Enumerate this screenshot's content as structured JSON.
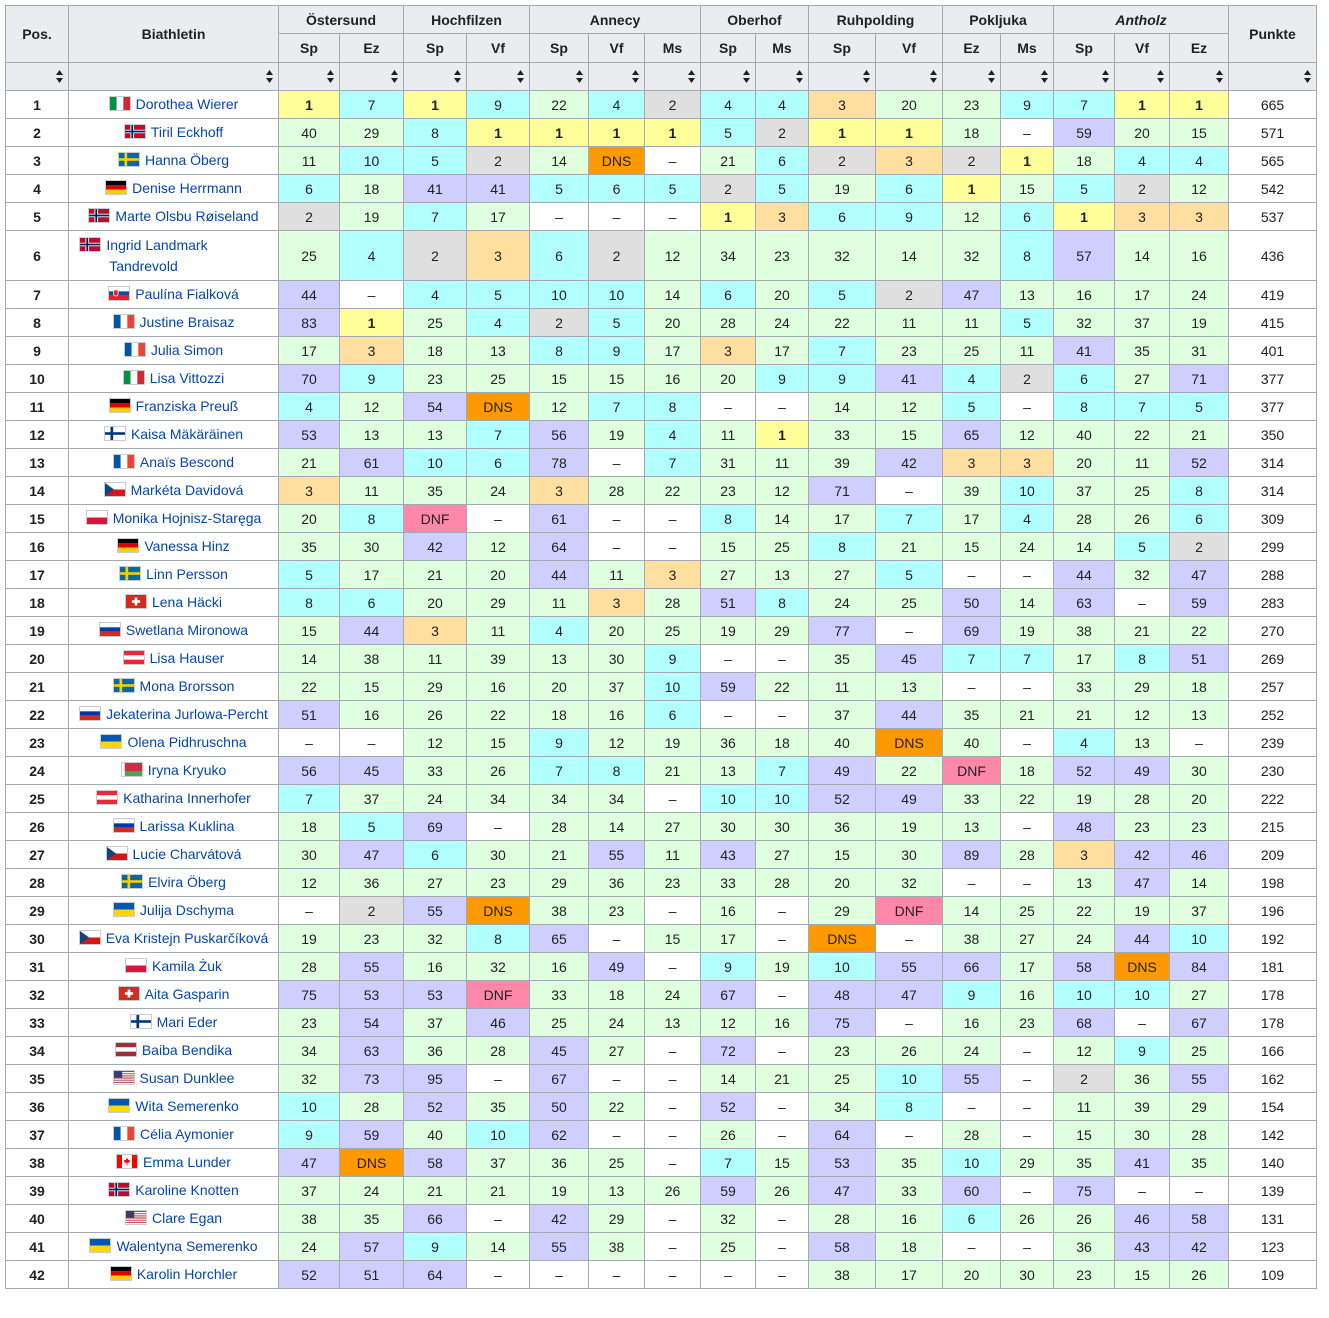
{
  "headers": {
    "pos": "Pos.",
    "athlete": "Biathletin",
    "points": "Punkte",
    "venues": [
      {
        "name": "Östersund",
        "events": [
          "Sp",
          "Ez"
        ],
        "italic": false
      },
      {
        "name": "Hochfilzen",
        "events": [
          "Sp",
          "Vf"
        ],
        "italic": false
      },
      {
        "name": "Annecy",
        "events": [
          "Sp",
          "Vf",
          "Ms"
        ],
        "italic": false
      },
      {
        "name": "Oberhof",
        "events": [
          "Sp",
          "Ms"
        ],
        "italic": false
      },
      {
        "name": "Ruhpolding",
        "events": [
          "Sp",
          "Vf"
        ],
        "italic": false
      },
      {
        "name": "Pokljuka",
        "events": [
          "Ez",
          "Ms"
        ],
        "italic": false
      },
      {
        "name": "Antholz",
        "events": [
          "Sp",
          "Vf",
          "Ez"
        ],
        "italic": true
      }
    ]
  },
  "colors": {
    "first": "#ffff99",
    "second": "#dfdfdf",
    "third": "#ffdf9f",
    "top10": "#b2ffff",
    "points": "#dfffdf",
    "noPoints": "#cfcfff",
    "dns": "#ff9900",
    "dnf": "#ff88aa",
    "none": "#ffffff"
  },
  "flags": {
    "ITA": [
      "#009246",
      "#ffffff",
      "#ce2b37"
    ],
    "NOR": [
      "#ba0c2f"
    ],
    "SWE": [
      "#006aa7"
    ],
    "GER": [
      "#000000",
      "#dd0000",
      "#ffce00"
    ],
    "SVK": [
      "#ffffff",
      "#0b4ea2",
      "#ee1c25"
    ],
    "FRA": [
      "#0055a4",
      "#ffffff",
      "#ef4135"
    ],
    "FIN": [
      "#ffffff"
    ],
    "CZE": [
      "#ffffff",
      "#d7141a"
    ],
    "POL": [
      "#ffffff",
      "#dc143c"
    ],
    "SUI": [
      "#d52b1e"
    ],
    "RUS": [
      "#ffffff",
      "#0039a6",
      "#d52b1e"
    ],
    "AUT": [
      "#ed2939",
      "#ffffff",
      "#ed2939"
    ],
    "UKR": [
      "#0057b7",
      "#ffd700"
    ],
    "BLR": [
      "#c8313e",
      "#4aa657"
    ],
    "LAT": [
      "#9e3039",
      "#ffffff",
      "#9e3039"
    ],
    "USA": [
      "#b22234"
    ],
    "CAN": [
      "#ff0000"
    ]
  },
  "rows": [
    {
      "pos": "1",
      "flag": "ITA",
      "name": "Dorothea Wierer",
      "results": [
        "1",
        "7",
        "1",
        "9",
        "22",
        "4",
        "2",
        "4",
        "4",
        "3",
        "20",
        "23",
        "9",
        "7",
        "1",
        "1"
      ],
      "points": "665"
    },
    {
      "pos": "2",
      "flag": "NOR",
      "name": "Tiril Eckhoff",
      "results": [
        "40",
        "29",
        "8",
        "1",
        "1",
        "1",
        "1",
        "5",
        "2",
        "1",
        "1",
        "18",
        "–",
        "59",
        "20",
        "15"
      ],
      "points": "571"
    },
    {
      "pos": "3",
      "flag": "SWE",
      "name": "Hanna Öberg",
      "results": [
        "11",
        "10",
        "5",
        "2",
        "14",
        "DNS",
        "–",
        "21",
        "6",
        "2",
        "3",
        "2",
        "1",
        "18",
        "4",
        "4"
      ],
      "points": "565"
    },
    {
      "pos": "4",
      "flag": "GER",
      "name": "Denise Herrmann",
      "results": [
        "6",
        "18",
        "41",
        "41",
        "5",
        "6",
        "5",
        "2",
        "5",
        "19",
        "6",
        "1",
        "15",
        "5",
        "2",
        "12"
      ],
      "points": "542"
    },
    {
      "pos": "5",
      "flag": "NOR",
      "name": "Marte Olsbu Røiseland",
      "results": [
        "2",
        "19",
        "7",
        "17",
        "–",
        "–",
        "–",
        "1",
        "3",
        "6",
        "9",
        "12",
        "6",
        "1",
        "3",
        "3"
      ],
      "points": "537"
    },
    {
      "pos": "6",
      "flag": "NOR",
      "name": "Ingrid Landmark Tandrevold",
      "results": [
        "25",
        "4",
        "2",
        "3",
        "6",
        "2",
        "12",
        "34",
        "23",
        "32",
        "14",
        "32",
        "8",
        "57",
        "14",
        "16"
      ],
      "points": "436"
    },
    {
      "pos": "7",
      "flag": "SVK",
      "name": "Paulína Fialková",
      "results": [
        "44",
        "–",
        "4",
        "5",
        "10",
        "10",
        "14",
        "6",
        "20",
        "5",
        "2",
        "47",
        "13",
        "16",
        "17",
        "24"
      ],
      "points": "419"
    },
    {
      "pos": "8",
      "flag": "FRA",
      "name": "Justine Braisaz",
      "results": [
        "83",
        "1",
        "25",
        "4",
        "2",
        "5",
        "20",
        "28",
        "24",
        "22",
        "11",
        "11",
        "5",
        "32",
        "37",
        "19"
      ],
      "points": "415"
    },
    {
      "pos": "9",
      "flag": "FRA",
      "name": "Julia Simon",
      "results": [
        "17",
        "3",
        "18",
        "13",
        "8",
        "9",
        "17",
        "3",
        "17",
        "7",
        "23",
        "25",
        "11",
        "41",
        "35",
        "31"
      ],
      "points": "401"
    },
    {
      "pos": "10",
      "flag": "ITA",
      "name": "Lisa Vittozzi",
      "results": [
        "70",
        "9",
        "23",
        "25",
        "15",
        "15",
        "16",
        "20",
        "9",
        "9",
        "41",
        "4",
        "2",
        "6",
        "27",
        "71"
      ],
      "points": "377"
    },
    {
      "pos": "11",
      "flag": "GER",
      "name": "Franziska Preuß",
      "results": [
        "4",
        "12",
        "54",
        "DNS",
        "12",
        "7",
        "8",
        "–",
        "–",
        "14",
        "12",
        "5",
        "–",
        "8",
        "7",
        "5"
      ],
      "points": "377"
    },
    {
      "pos": "12",
      "flag": "FIN",
      "name": "Kaisa Mäkäräinen",
      "results": [
        "53",
        "13",
        "13",
        "7",
        "56",
        "19",
        "4",
        "11",
        "1",
        "33",
        "15",
        "65",
        "12",
        "40",
        "22",
        "21"
      ],
      "points": "350"
    },
    {
      "pos": "13",
      "flag": "FRA",
      "name": "Anaïs Bescond",
      "results": [
        "21",
        "61",
        "10",
        "6",
        "78",
        "–",
        "7",
        "31",
        "11",
        "39",
        "42",
        "3",
        "3",
        "20",
        "11",
        "52"
      ],
      "points": "314"
    },
    {
      "pos": "14",
      "flag": "CZE",
      "name": "Markéta Davidová",
      "results": [
        "3",
        "11",
        "35",
        "24",
        "3",
        "28",
        "22",
        "23",
        "12",
        "71",
        "–",
        "39",
        "10",
        "37",
        "25",
        "8"
      ],
      "points": "314"
    },
    {
      "pos": "15",
      "flag": "POL",
      "name": "Monika Hojnisz-Staręga",
      "results": [
        "20",
        "8",
        "DNF",
        "–",
        "61",
        "–",
        "–",
        "8",
        "14",
        "17",
        "7",
        "17",
        "4",
        "28",
        "26",
        "6"
      ],
      "points": "309"
    },
    {
      "pos": "16",
      "flag": "GER",
      "name": "Vanessa Hinz",
      "results": [
        "35",
        "30",
        "42",
        "12",
        "64",
        "–",
        "–",
        "15",
        "25",
        "8",
        "21",
        "15",
        "24",
        "14",
        "5",
        "2"
      ],
      "points": "299"
    },
    {
      "pos": "17",
      "flag": "SWE",
      "name": "Linn Persson",
      "results": [
        "5",
        "17",
        "21",
        "20",
        "44",
        "11",
        "3",
        "27",
        "13",
        "27",
        "5",
        "–",
        "–",
        "44",
        "32",
        "47"
      ],
      "points": "288"
    },
    {
      "pos": "18",
      "flag": "SUI",
      "name": "Lena Häcki",
      "results": [
        "8",
        "6",
        "20",
        "29",
        "11",
        "3",
        "28",
        "51",
        "8",
        "24",
        "25",
        "50",
        "14",
        "63",
        "–",
        "59"
      ],
      "points": "283"
    },
    {
      "pos": "19",
      "flag": "RUS",
      "name": "Swetlana Mironowa",
      "results": [
        "15",
        "44",
        "3",
        "11",
        "4",
        "20",
        "25",
        "19",
        "29",
        "77",
        "–",
        "69",
        "19",
        "38",
        "21",
        "22"
      ],
      "points": "270"
    },
    {
      "pos": "20",
      "flag": "AUT",
      "name": "Lisa Hauser",
      "results": [
        "14",
        "38",
        "11",
        "39",
        "13",
        "30",
        "9",
        "–",
        "–",
        "35",
        "45",
        "7",
        "7",
        "17",
        "8",
        "51"
      ],
      "points": "269"
    },
    {
      "pos": "21",
      "flag": "SWE",
      "name": "Mona Brorsson",
      "results": [
        "22",
        "15",
        "29",
        "16",
        "20",
        "37",
        "10",
        "59",
        "22",
        "11",
        "13",
        "–",
        "–",
        "33",
        "29",
        "18"
      ],
      "points": "257"
    },
    {
      "pos": "22",
      "flag": "RUS",
      "name": "Jekaterina Jurlowa-Percht",
      "results": [
        "51",
        "16",
        "26",
        "22",
        "18",
        "16",
        "6",
        "–",
        "–",
        "37",
        "44",
        "35",
        "21",
        "21",
        "12",
        "13"
      ],
      "points": "252"
    },
    {
      "pos": "23",
      "flag": "UKR",
      "name": "Olena Pidhruschna",
      "results": [
        "–",
        "–",
        "12",
        "15",
        "9",
        "12",
        "19",
        "36",
        "18",
        "40",
        "DNS",
        "40",
        "–",
        "4",
        "13",
        "–"
      ],
      "points": "239"
    },
    {
      "pos": "24",
      "flag": "BLR",
      "name": "Iryna Kryuko",
      "results": [
        "56",
        "45",
        "33",
        "26",
        "7",
        "8",
        "21",
        "13",
        "7",
        "49",
        "22",
        "DNF",
        "18",
        "52",
        "49",
        "30"
      ],
      "points": "230"
    },
    {
      "pos": "25",
      "flag": "AUT",
      "name": "Katharina Innerhofer",
      "results": [
        "7",
        "37",
        "24",
        "34",
        "34",
        "34",
        "–",
        "10",
        "10",
        "52",
        "49",
        "33",
        "22",
        "19",
        "28",
        "20"
      ],
      "points": "222"
    },
    {
      "pos": "26",
      "flag": "RUS",
      "name": "Larissa Kuklina",
      "results": [
        "18",
        "5",
        "69",
        "–",
        "28",
        "14",
        "27",
        "30",
        "30",
        "36",
        "19",
        "13",
        "–",
        "48",
        "23",
        "23"
      ],
      "points": "215"
    },
    {
      "pos": "27",
      "flag": "CZE",
      "name": "Lucie Charvátová",
      "results": [
        "30",
        "47",
        "6",
        "30",
        "21",
        "55",
        "11",
        "43",
        "27",
        "15",
        "30",
        "89",
        "28",
        "3",
        "42",
        "46"
      ],
      "points": "209"
    },
    {
      "pos": "28",
      "flag": "SWE",
      "name": "Elvira Öberg",
      "results": [
        "12",
        "36",
        "27",
        "23",
        "29",
        "36",
        "23",
        "33",
        "28",
        "20",
        "32",
        "–",
        "–",
        "13",
        "47",
        "14"
      ],
      "points": "198"
    },
    {
      "pos": "29",
      "flag": "UKR",
      "name": "Julija Dschyma",
      "results": [
        "–",
        "2",
        "55",
        "DNS",
        "38",
        "23",
        "–",
        "16",
        "–",
        "29",
        "DNF",
        "14",
        "25",
        "22",
        "19",
        "37"
      ],
      "points": "196"
    },
    {
      "pos": "30",
      "flag": "CZE",
      "name": "Eva Kristejn Puskarčíková",
      "results": [
        "19",
        "23",
        "32",
        "8",
        "65",
        "–",
        "15",
        "17",
        "–",
        "DNS",
        "–",
        "38",
        "27",
        "24",
        "44",
        "10"
      ],
      "points": "192"
    },
    {
      "pos": "31",
      "flag": "POL",
      "name": "Kamila Żuk",
      "results": [
        "28",
        "55",
        "16",
        "32",
        "16",
        "49",
        "–",
        "9",
        "19",
        "10",
        "55",
        "66",
        "17",
        "58",
        "DNS",
        "84"
      ],
      "points": "181"
    },
    {
      "pos": "32",
      "flag": "SUI",
      "name": "Aita Gasparin",
      "results": [
        "75",
        "53",
        "53",
        "DNF",
        "33",
        "18",
        "24",
        "67",
        "–",
        "48",
        "47",
        "9",
        "16",
        "10",
        "10",
        "27"
      ],
      "points": "178"
    },
    {
      "pos": "33",
      "flag": "FIN",
      "name": "Mari Eder",
      "results": [
        "23",
        "54",
        "37",
        "46",
        "25",
        "24",
        "13",
        "12",
        "16",
        "75",
        "–",
        "16",
        "23",
        "68",
        "–",
        "67"
      ],
      "points": "178"
    },
    {
      "pos": "34",
      "flag": "LAT",
      "name": "Baiba Bendika",
      "results": [
        "34",
        "63",
        "36",
        "28",
        "45",
        "27",
        "–",
        "72",
        "–",
        "23",
        "26",
        "24",
        "–",
        "12",
        "9",
        "25"
      ],
      "points": "166"
    },
    {
      "pos": "35",
      "flag": "USA",
      "name": "Susan Dunklee",
      "results": [
        "32",
        "73",
        "95",
        "–",
        "67",
        "–",
        "–",
        "14",
        "21",
        "25",
        "10",
        "55",
        "–",
        "2",
        "36",
        "55"
      ],
      "points": "162"
    },
    {
      "pos": "36",
      "flag": "UKR",
      "name": "Wita Semerenko",
      "results": [
        "10",
        "28",
        "52",
        "35",
        "50",
        "22",
        "–",
        "52",
        "–",
        "34",
        "8",
        "–",
        "–",
        "11",
        "39",
        "29"
      ],
      "points": "154"
    },
    {
      "pos": "37",
      "flag": "FRA",
      "name": "Célia Aymonier",
      "results": [
        "9",
        "59",
        "40",
        "10",
        "62",
        "–",
        "–",
        "26",
        "–",
        "64",
        "–",
        "28",
        "–",
        "15",
        "30",
        "28"
      ],
      "points": "142"
    },
    {
      "pos": "38",
      "flag": "CAN",
      "name": "Emma Lunder",
      "results": [
        "47",
        "DNS",
        "58",
        "37",
        "36",
        "25",
        "–",
        "7",
        "15",
        "53",
        "35",
        "10",
        "29",
        "35",
        "41",
        "35"
      ],
      "points": "140"
    },
    {
      "pos": "39",
      "flag": "NOR",
      "name": "Karoline Knotten",
      "results": [
        "37",
        "24",
        "21",
        "21",
        "19",
        "13",
        "26",
        "59",
        "26",
        "47",
        "33",
        "60",
        "–",
        "75",
        "–",
        "–"
      ],
      "points": "139"
    },
    {
      "pos": "40",
      "flag": "USA",
      "name": "Clare Egan",
      "results": [
        "38",
        "35",
        "66",
        "–",
        "42",
        "29",
        "–",
        "32",
        "–",
        "28",
        "16",
        "6",
        "26",
        "26",
        "46",
        "58"
      ],
      "points": "131"
    },
    {
      "pos": "41",
      "flag": "UKR",
      "name": "Walentyna Semerenko",
      "results": [
        "24",
        "57",
        "9",
        "14",
        "55",
        "38",
        "–",
        "25",
        "–",
        "58",
        "18",
        "–",
        "–",
        "36",
        "43",
        "42"
      ],
      "points": "123"
    },
    {
      "pos": "42",
      "flag": "GER",
      "name": "Karolin Horchler",
      "results": [
        "52",
        "51",
        "64",
        "–",
        "–",
        "–",
        "–",
        "–",
        "–",
        "38",
        "17",
        "20",
        "30",
        "23",
        "15",
        "26"
      ],
      "points": "109"
    }
  ]
}
